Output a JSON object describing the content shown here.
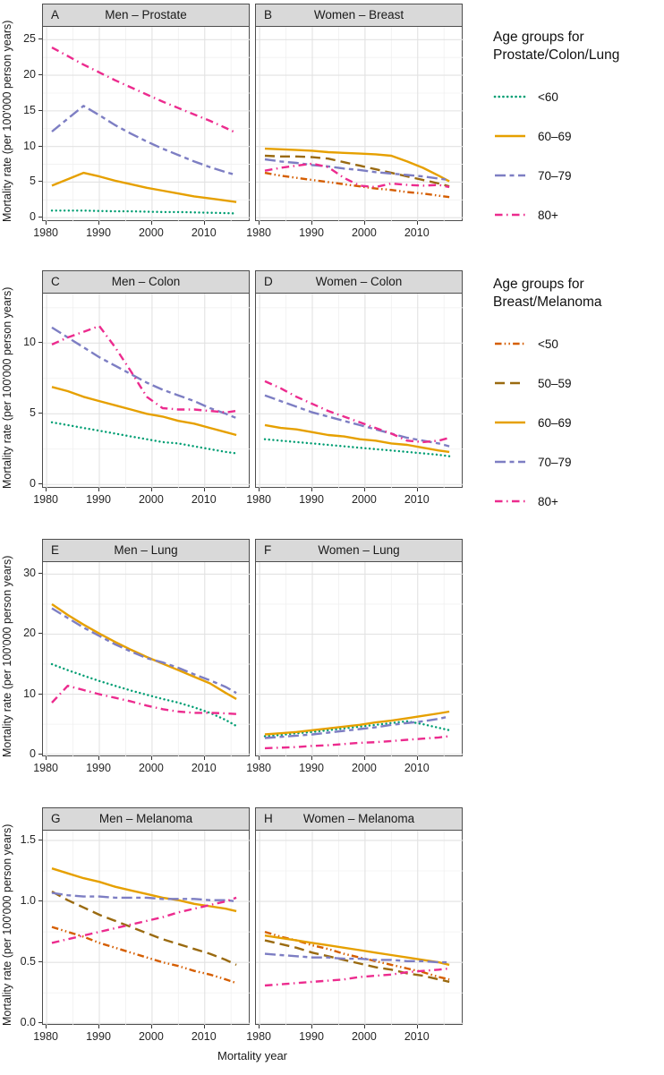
{
  "figure": {
    "y_axis_label": "Mortality rate (per 100'000 person years)",
    "x_axis_label": "Mortality year"
  },
  "colors": {
    "<50": "#D55E00",
    "50-59": "#9A6A10",
    "60-69": "#E6A000",
    "70-79": "#7D7EC3",
    "80+": "#EC2B8E",
    "<60": "#009E73"
  },
  "linetypes": {
    "<50": "dash-dot-dot",
    "50-59": "longdash",
    "60-69": "solid",
    "70-79": "twodash",
    "80+": "dashdot",
    "<60": "dotted"
  },
  "legends": [
    {
      "title_lines": [
        "Age groups for",
        "Prostate/Colon/Lung"
      ],
      "entries": [
        {
          "label": "<60",
          "age_group": "<60"
        },
        {
          "label": "60–69",
          "age_group": "60-69"
        },
        {
          "label": "70–79",
          "age_group": "70-79"
        },
        {
          "label": "80+",
          "age_group": "80+"
        }
      ]
    },
    {
      "title_lines": [
        "Age groups for",
        "Breast/Melanoma"
      ],
      "entries": [
        {
          "label": "<50",
          "age_group": "<50"
        },
        {
          "label": "50–59",
          "age_group": "50-59"
        },
        {
          "label": "60–69",
          "age_group": "60-69"
        },
        {
          "label": "70–79",
          "age_group": "70-79"
        },
        {
          "label": "80+",
          "age_group": "80+"
        }
      ]
    }
  ],
  "chart_data": [
    {
      "type": "line",
      "panel_label": "A",
      "title": "Men – Prostate",
      "legend_group": "Prostate/Colon/Lung",
      "x": [
        1981,
        1984,
        1987,
        1990,
        1993,
        1996,
        1999,
        2002,
        2005,
        2008,
        2011,
        2014,
        2016
      ],
      "xlim": [
        1979.3,
        2018.7
      ],
      "xticks": [
        1980,
        1990,
        2000,
        2010
      ],
      "ylim": [
        -0.6,
        26.8
      ],
      "yticks": [
        0,
        5,
        10,
        15,
        20,
        25
      ],
      "ytick_labels": [
        "0",
        "5",
        "10",
        "15",
        "20",
        "25"
      ],
      "series": [
        {
          "name": "<60",
          "values": [
            1.0,
            1.0,
            1.0,
            0.95,
            0.9,
            0.9,
            0.85,
            0.8,
            0.8,
            0.75,
            0.7,
            0.65,
            0.6
          ]
        },
        {
          "name": "60-69",
          "values": [
            4.5,
            5.4,
            6.3,
            5.8,
            5.2,
            4.7,
            4.2,
            3.8,
            3.4,
            3.0,
            2.7,
            2.4,
            2.2
          ]
        },
        {
          "name": "70-79",
          "values": [
            12.1,
            13.9,
            15.7,
            14.4,
            13.0,
            11.8,
            10.7,
            9.7,
            8.8,
            7.9,
            7.1,
            6.4,
            6.0
          ]
        },
        {
          "name": "80+",
          "values": [
            23.9,
            22.7,
            21.5,
            20.4,
            19.3,
            18.3,
            17.3,
            16.3,
            15.4,
            14.5,
            13.6,
            12.6,
            11.9
          ]
        }
      ]
    },
    {
      "type": "line",
      "panel_label": "B",
      "title": "Women – Breast",
      "legend_group": "Breast/Melanoma",
      "x": [
        1981,
        1984,
        1987,
        1990,
        1993,
        1996,
        1999,
        2002,
        2005,
        2008,
        2011,
        2014,
        2016
      ],
      "xlim": [
        1979.3,
        2018.7
      ],
      "xticks": [
        1980,
        1990,
        2000,
        2010
      ],
      "ylim": [
        -0.6,
        26.8
      ],
      "yticks": [
        0,
        5,
        10,
        15,
        20,
        25
      ],
      "ytick_labels": [
        "0",
        "5",
        "10",
        "15",
        "20",
        "25"
      ],
      "series": [
        {
          "name": "<50",
          "values": [
            6.3,
            5.9,
            5.6,
            5.3,
            5.0,
            4.7,
            4.4,
            4.1,
            3.9,
            3.6,
            3.4,
            3.1,
            2.9
          ]
        },
        {
          "name": "50-59",
          "values": [
            8.7,
            8.6,
            8.6,
            8.5,
            8.3,
            7.8,
            7.3,
            6.8,
            6.3,
            5.8,
            5.3,
            4.8,
            4.4
          ]
        },
        {
          "name": "60-69",
          "values": [
            9.7,
            9.6,
            9.5,
            9.4,
            9.2,
            9.1,
            9.0,
            8.9,
            8.7,
            7.9,
            7.0,
            5.9,
            5.1
          ]
        },
        {
          "name": "70-79",
          "values": [
            8.2,
            7.9,
            7.7,
            7.4,
            7.2,
            6.9,
            6.7,
            6.4,
            6.2,
            6.0,
            5.8,
            5.5,
            5.3
          ]
        },
        {
          "name": "80+",
          "values": [
            6.6,
            7.0,
            7.3,
            7.6,
            7.1,
            5.6,
            4.5,
            4.3,
            4.8,
            4.6,
            4.5,
            4.6,
            4.3
          ]
        }
      ]
    },
    {
      "type": "line",
      "panel_label": "C",
      "title": "Men – Colon",
      "legend_group": "Prostate/Colon/Lung",
      "x": [
        1981,
        1984,
        1987,
        1990,
        1993,
        1996,
        1999,
        2002,
        2005,
        2008,
        2011,
        2014,
        2016
      ],
      "xlim": [
        1979.3,
        2018.7
      ],
      "xticks": [
        1980,
        1990,
        2000,
        2010
      ],
      "ylim": [
        -0.3,
        13.5
      ],
      "yticks": [
        0,
        5,
        10
      ],
      "ytick_labels": [
        "0",
        "5",
        "10"
      ],
      "series": [
        {
          "name": "<60",
          "values": [
            4.4,
            4.2,
            4.0,
            3.8,
            3.6,
            3.4,
            3.2,
            3.0,
            2.9,
            2.7,
            2.5,
            2.3,
            2.2
          ]
        },
        {
          "name": "60-69",
          "values": [
            6.9,
            6.6,
            6.2,
            5.9,
            5.6,
            5.3,
            5.0,
            4.8,
            4.5,
            4.3,
            4.0,
            3.7,
            3.5
          ]
        },
        {
          "name": "70-79",
          "values": [
            11.1,
            10.4,
            9.7,
            9.0,
            8.4,
            7.8,
            7.2,
            6.7,
            6.3,
            5.9,
            5.4,
            5.0,
            4.7
          ]
        },
        {
          "name": "80+",
          "values": [
            9.9,
            10.4,
            10.8,
            11.2,
            9.7,
            8.0,
            6.2,
            5.4,
            5.3,
            5.3,
            5.2,
            5.1,
            5.2
          ]
        }
      ]
    },
    {
      "type": "line",
      "panel_label": "D",
      "title": "Women – Colon",
      "legend_group": "Prostate/Colon/Lung",
      "x": [
        1981,
        1984,
        1987,
        1990,
        1993,
        1996,
        1999,
        2002,
        2005,
        2008,
        2011,
        2014,
        2016
      ],
      "xlim": [
        1979.3,
        2018.7
      ],
      "xticks": [
        1980,
        1990,
        2000,
        2010
      ],
      "ylim": [
        -0.3,
        13.5
      ],
      "yticks": [
        0,
        5,
        10
      ],
      "ytick_labels": [
        "0",
        "5",
        "10"
      ],
      "series": [
        {
          "name": "<60",
          "values": [
            3.2,
            3.1,
            3.0,
            2.9,
            2.8,
            2.7,
            2.6,
            2.5,
            2.4,
            2.3,
            2.2,
            2.1,
            2.0
          ]
        },
        {
          "name": "60-69",
          "values": [
            4.2,
            4.0,
            3.9,
            3.7,
            3.5,
            3.4,
            3.2,
            3.1,
            2.9,
            2.8,
            2.6,
            2.4,
            2.3
          ]
        },
        {
          "name": "70-79",
          "values": [
            6.3,
            5.9,
            5.5,
            5.1,
            4.8,
            4.5,
            4.2,
            3.9,
            3.6,
            3.3,
            3.1,
            2.9,
            2.7
          ]
        },
        {
          "name": "80+",
          "values": [
            7.3,
            6.8,
            6.2,
            5.7,
            5.2,
            4.8,
            4.4,
            4.0,
            3.6,
            3.1,
            3.0,
            3.1,
            3.3
          ]
        }
      ]
    },
    {
      "type": "line",
      "panel_label": "E",
      "title": "Men – Lung",
      "legend_group": "Prostate/Colon/Lung",
      "x": [
        1981,
        1984,
        1987,
        1990,
        1993,
        1996,
        1999,
        2002,
        2005,
        2008,
        2011,
        2014,
        2016
      ],
      "xlim": [
        1979.3,
        2018.7
      ],
      "xticks": [
        1980,
        1990,
        2000,
        2010
      ],
      "ylim": [
        -0.5,
        32.0
      ],
      "yticks": [
        0,
        10,
        20,
        30
      ],
      "ytick_labels": [
        "0",
        "10",
        "20",
        "30"
      ],
      "series": [
        {
          "name": "<60",
          "values": [
            15.0,
            14.0,
            13.1,
            12.2,
            11.4,
            10.6,
            9.9,
            9.2,
            8.6,
            7.8,
            6.9,
            5.7,
            4.7
          ]
        },
        {
          "name": "60-69",
          "values": [
            25.0,
            23.2,
            21.6,
            20.1,
            18.7,
            17.4,
            16.2,
            15.1,
            14.0,
            12.9,
            11.8,
            10.2,
            9.2
          ]
        },
        {
          "name": "70-79",
          "values": [
            24.3,
            22.7,
            21.1,
            19.7,
            18.3,
            17.1,
            16.0,
            15.3,
            14.4,
            13.3,
            12.3,
            11.2,
            10.2
          ]
        },
        {
          "name": "80+",
          "values": [
            8.6,
            11.4,
            10.7,
            10.0,
            9.4,
            8.8,
            8.1,
            7.5,
            7.1,
            6.9,
            6.9,
            6.8,
            6.7
          ]
        }
      ]
    },
    {
      "type": "line",
      "panel_label": "F",
      "title": "Women – Lung",
      "legend_group": "Prostate/Colon/Lung",
      "x": [
        1981,
        1984,
        1987,
        1990,
        1993,
        1996,
        1999,
        2002,
        2005,
        2008,
        2011,
        2014,
        2016
      ],
      "xlim": [
        1979.3,
        2018.7
      ],
      "xticks": [
        1980,
        1990,
        2000,
        2010
      ],
      "ylim": [
        -0.5,
        32.0
      ],
      "yticks": [
        0,
        10,
        20,
        30
      ],
      "ytick_labels": [
        "0",
        "10",
        "20",
        "30"
      ],
      "series": [
        {
          "name": "<60",
          "values": [
            3.0,
            3.2,
            3.5,
            3.7,
            4.0,
            4.3,
            4.6,
            4.9,
            5.2,
            5.5,
            5.0,
            4.4,
            4.0
          ]
        },
        {
          "name": "60-69",
          "values": [
            3.3,
            3.5,
            3.7,
            4.0,
            4.3,
            4.6,
            4.9,
            5.3,
            5.6,
            6.0,
            6.4,
            6.8,
            7.1
          ]
        },
        {
          "name": "70-79",
          "values": [
            2.7,
            2.9,
            3.1,
            3.3,
            3.6,
            3.9,
            4.2,
            4.5,
            4.9,
            5.2,
            5.5,
            5.9,
            6.3
          ]
        },
        {
          "name": "80+",
          "values": [
            1.0,
            1.1,
            1.2,
            1.4,
            1.5,
            1.7,
            1.9,
            2.0,
            2.2,
            2.4,
            2.6,
            2.8,
            3.0
          ]
        }
      ]
    },
    {
      "type": "line",
      "panel_label": "G",
      "title": "Men – Melanoma",
      "legend_group": "Breast/Melanoma",
      "x": [
        1981,
        1984,
        1987,
        1990,
        1993,
        1996,
        1999,
        2002,
        2005,
        2008,
        2011,
        2014,
        2016
      ],
      "xlim": [
        1979.3,
        2018.7
      ],
      "xticks": [
        1980,
        1990,
        2000,
        2010
      ],
      "ylim": [
        -0.02,
        1.58
      ],
      "yticks": [
        0,
        0.5,
        1,
        1.5
      ],
      "ytick_labels": [
        "0.0",
        "0.5",
        "1.0",
        "1.5"
      ],
      "series": [
        {
          "name": "<50",
          "values": [
            0.79,
            0.75,
            0.71,
            0.66,
            0.62,
            0.58,
            0.54,
            0.5,
            0.47,
            0.43,
            0.4,
            0.36,
            0.33
          ]
        },
        {
          "name": "50-59",
          "values": [
            1.08,
            1.01,
            0.95,
            0.89,
            0.84,
            0.79,
            0.74,
            0.69,
            0.65,
            0.61,
            0.57,
            0.52,
            0.48
          ]
        },
        {
          "name": "60-69",
          "values": [
            1.27,
            1.23,
            1.19,
            1.16,
            1.12,
            1.09,
            1.06,
            1.03,
            1.01,
            0.98,
            0.96,
            0.94,
            0.92
          ]
        },
        {
          "name": "70-79",
          "values": [
            1.07,
            1.05,
            1.04,
            1.04,
            1.03,
            1.03,
            1.03,
            1.02,
            1.02,
            1.02,
            1.01,
            1.01,
            1.0
          ]
        },
        {
          "name": "80+",
          "values": [
            0.66,
            0.69,
            0.72,
            0.75,
            0.78,
            0.81,
            0.84,
            0.87,
            0.91,
            0.94,
            0.97,
            1.0,
            1.03
          ]
        }
      ]
    },
    {
      "type": "line",
      "panel_label": "H",
      "title": "Women – Melanoma",
      "legend_group": "Breast/Melanoma",
      "x": [
        1981,
        1984,
        1987,
        1990,
        1993,
        1996,
        1999,
        2002,
        2005,
        2008,
        2011,
        2014,
        2016
      ],
      "xlim": [
        1979.3,
        2018.7
      ],
      "xticks": [
        1980,
        1990,
        2000,
        2010
      ],
      "ylim": [
        -0.02,
        1.58
      ],
      "yticks": [
        0,
        0.5,
        1,
        1.5
      ],
      "ytick_labels": [
        "0.0",
        "0.5",
        "1.0",
        "1.5"
      ],
      "series": [
        {
          "name": "<50",
          "values": [
            0.75,
            0.71,
            0.68,
            0.64,
            0.61,
            0.57,
            0.54,
            0.51,
            0.48,
            0.45,
            0.42,
            0.38,
            0.36
          ]
        },
        {
          "name": "50-59",
          "values": [
            0.68,
            0.65,
            0.62,
            0.58,
            0.55,
            0.52,
            0.49,
            0.46,
            0.44,
            0.41,
            0.39,
            0.36,
            0.34
          ]
        },
        {
          "name": "60-69",
          "values": [
            0.72,
            0.7,
            0.68,
            0.66,
            0.64,
            0.62,
            0.6,
            0.58,
            0.56,
            0.54,
            0.52,
            0.5,
            0.48
          ]
        },
        {
          "name": "70-79",
          "values": [
            0.57,
            0.56,
            0.55,
            0.54,
            0.54,
            0.53,
            0.53,
            0.52,
            0.52,
            0.51,
            0.51,
            0.5,
            0.5
          ]
        },
        {
          "name": "80+",
          "values": [
            0.31,
            0.32,
            0.33,
            0.34,
            0.35,
            0.36,
            0.38,
            0.39,
            0.4,
            0.42,
            0.43,
            0.44,
            0.45
          ]
        }
      ]
    }
  ]
}
